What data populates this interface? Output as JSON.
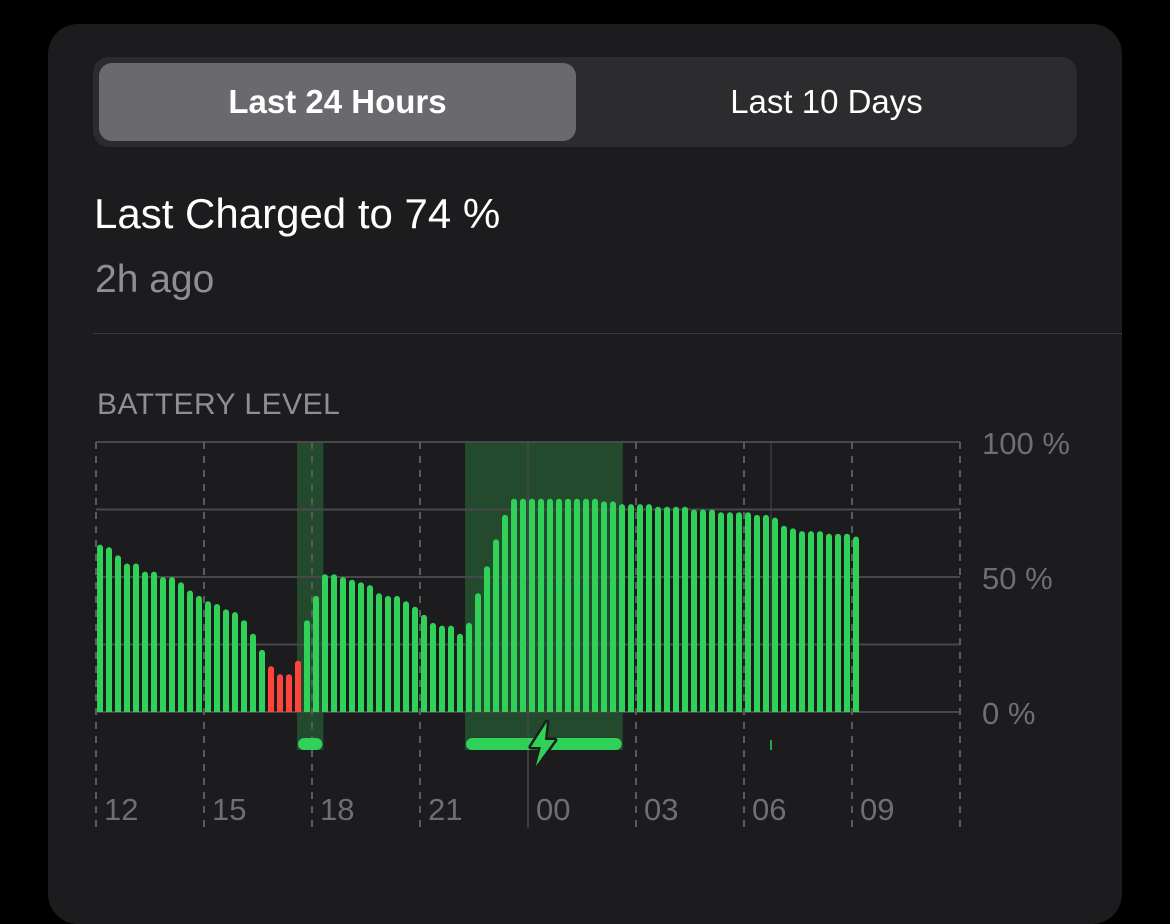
{
  "segmented_control": {
    "options": [
      {
        "label": "Last 24 Hours",
        "selected": true
      },
      {
        "label": "Last 10 Days",
        "selected": false
      }
    ]
  },
  "summary": {
    "title": "Last Charged to 74 %",
    "subtitle": "2h ago"
  },
  "section_label": "BATTERY LEVEL",
  "colors": {
    "normal_bar": "#30d158",
    "low_bar": "#ff453a",
    "charging_shade": "#244a2e",
    "background": "#1c1c1e"
  },
  "chart_data": {
    "type": "bar",
    "interval_minutes": 15,
    "start_time": "12:00",
    "x_tick_labels": [
      "12",
      "15",
      "18",
      "21",
      "00",
      "03",
      "06",
      "09"
    ],
    "y_tick_labels": [
      "100 %",
      "50 %",
      "0 %"
    ],
    "ylim": [
      0,
      100
    ],
    "grid": true,
    "low_threshold": 20,
    "values": [
      62,
      61,
      58,
      55,
      55,
      52,
      52,
      50,
      50,
      48,
      45,
      43,
      41,
      40,
      38,
      37,
      34,
      29,
      23,
      17,
      14,
      14,
      19,
      34,
      43,
      51,
      51,
      50,
      49,
      48,
      47,
      44,
      43,
      43,
      41,
      39,
      36,
      33,
      32,
      32,
      29,
      33,
      44,
      54,
      64,
      73,
      79,
      79,
      79,
      79,
      79,
      79,
      79,
      79,
      79,
      79,
      78,
      78,
      77,
      77,
      77,
      77,
      76,
      76,
      76,
      76,
      75,
      75,
      75,
      74,
      74,
      74,
      74,
      73,
      73,
      72,
      69,
      68,
      67,
      67,
      67,
      66,
      66,
      66,
      65
    ],
    "charging_periods": [
      {
        "start": "17:35",
        "end": "18:19",
        "icon": false
      },
      {
        "start": "22:15",
        "end": "02:38",
        "icon": "bolt-icon"
      }
    ],
    "event_marker": "06:45"
  }
}
